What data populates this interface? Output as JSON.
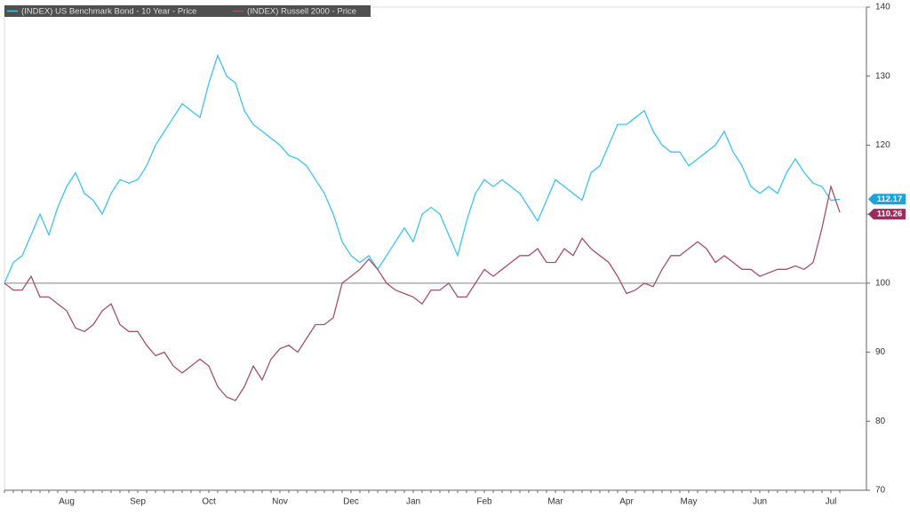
{
  "chart_data": {
    "type": "line",
    "categories": [
      null,
      null,
      null,
      null,
      null,
      null,
      null,
      "Aug",
      null,
      null,
      null,
      null,
      null,
      null,
      null,
      "Sep",
      null,
      null,
      null,
      null,
      null,
      null,
      null,
      "Oct",
      null,
      null,
      null,
      null,
      null,
      null,
      null,
      "Nov",
      null,
      null,
      null,
      null,
      null,
      null,
      null,
      "Dec",
      null,
      null,
      null,
      null,
      null,
      null,
      "Jan",
      null,
      null,
      null,
      null,
      null,
      null,
      null,
      "Feb",
      null,
      null,
      null,
      null,
      null,
      null,
      null,
      "Mar",
      null,
      null,
      null,
      null,
      null,
      null,
      null,
      "Apr",
      null,
      null,
      null,
      null,
      null,
      null,
      "May",
      null,
      null,
      null,
      null,
      null,
      null,
      null,
      "Jun",
      null,
      null,
      null,
      null,
      null,
      null,
      null,
      "Jul",
      null
    ],
    "series": [
      {
        "name": "(INDEX) US Benchmark Bond - 10 Year - Price",
        "color": "#3ec3ee",
        "values": [
          100,
          103,
          104,
          107,
          110,
          107,
          111,
          114,
          116,
          113,
          112,
          110,
          113,
          115,
          114.5,
          115,
          117,
          120,
          122,
          124,
          126,
          125,
          124,
          129,
          133,
          130,
          129,
          125,
          123,
          122,
          121,
          120,
          118.5,
          118,
          117,
          115,
          113,
          110,
          106,
          104,
          103,
          104,
          102,
          104,
          106,
          108,
          106,
          110,
          111,
          110,
          107,
          104,
          109,
          113,
          115,
          114,
          115,
          114,
          113,
          111,
          109,
          112,
          115,
          114,
          113,
          112,
          116,
          117,
          120,
          123,
          123,
          124,
          125,
          122,
          120,
          119,
          119,
          117,
          118,
          119,
          120,
          122,
          119,
          117,
          114,
          113,
          114,
          113,
          116,
          118,
          116,
          114.5,
          114,
          112,
          112.17
        ]
      },
      {
        "name": "(INDEX) Russell 2000 - Price",
        "color": "#a4506e",
        "values": [
          100,
          99,
          99,
          101,
          98,
          98,
          97,
          96,
          93.5,
          93,
          94,
          96,
          97,
          94,
          93,
          93,
          91,
          89.5,
          90,
          88,
          87,
          88,
          89,
          88,
          85,
          83.5,
          83,
          85,
          88,
          86,
          89,
          90.5,
          91,
          90,
          92,
          94,
          94,
          95,
          100,
          101,
          102,
          103.5,
          102,
          100,
          99,
          98.5,
          98,
          97,
          99,
          99,
          100,
          98,
          98,
          100,
          102,
          101,
          102,
          103,
          104,
          104,
          105,
          103,
          103,
          105,
          104,
          106.5,
          105,
          104,
          103,
          101,
          98.5,
          99,
          100,
          99.5,
          102,
          104,
          104,
          105,
          106,
          105,
          103,
          104,
          103,
          102,
          102,
          101,
          101.5,
          102,
          102,
          102.5,
          102,
          103,
          108,
          114,
          110.26
        ]
      }
    ],
    "label_colors": [
      "#1aa3dd",
      "#9b2d5c"
    ],
    "ylim": [
      70,
      140
    ],
    "yticks": [
      70,
      80,
      90,
      100,
      110,
      120,
      130,
      140
    ],
    "reference_line": 100
  }
}
